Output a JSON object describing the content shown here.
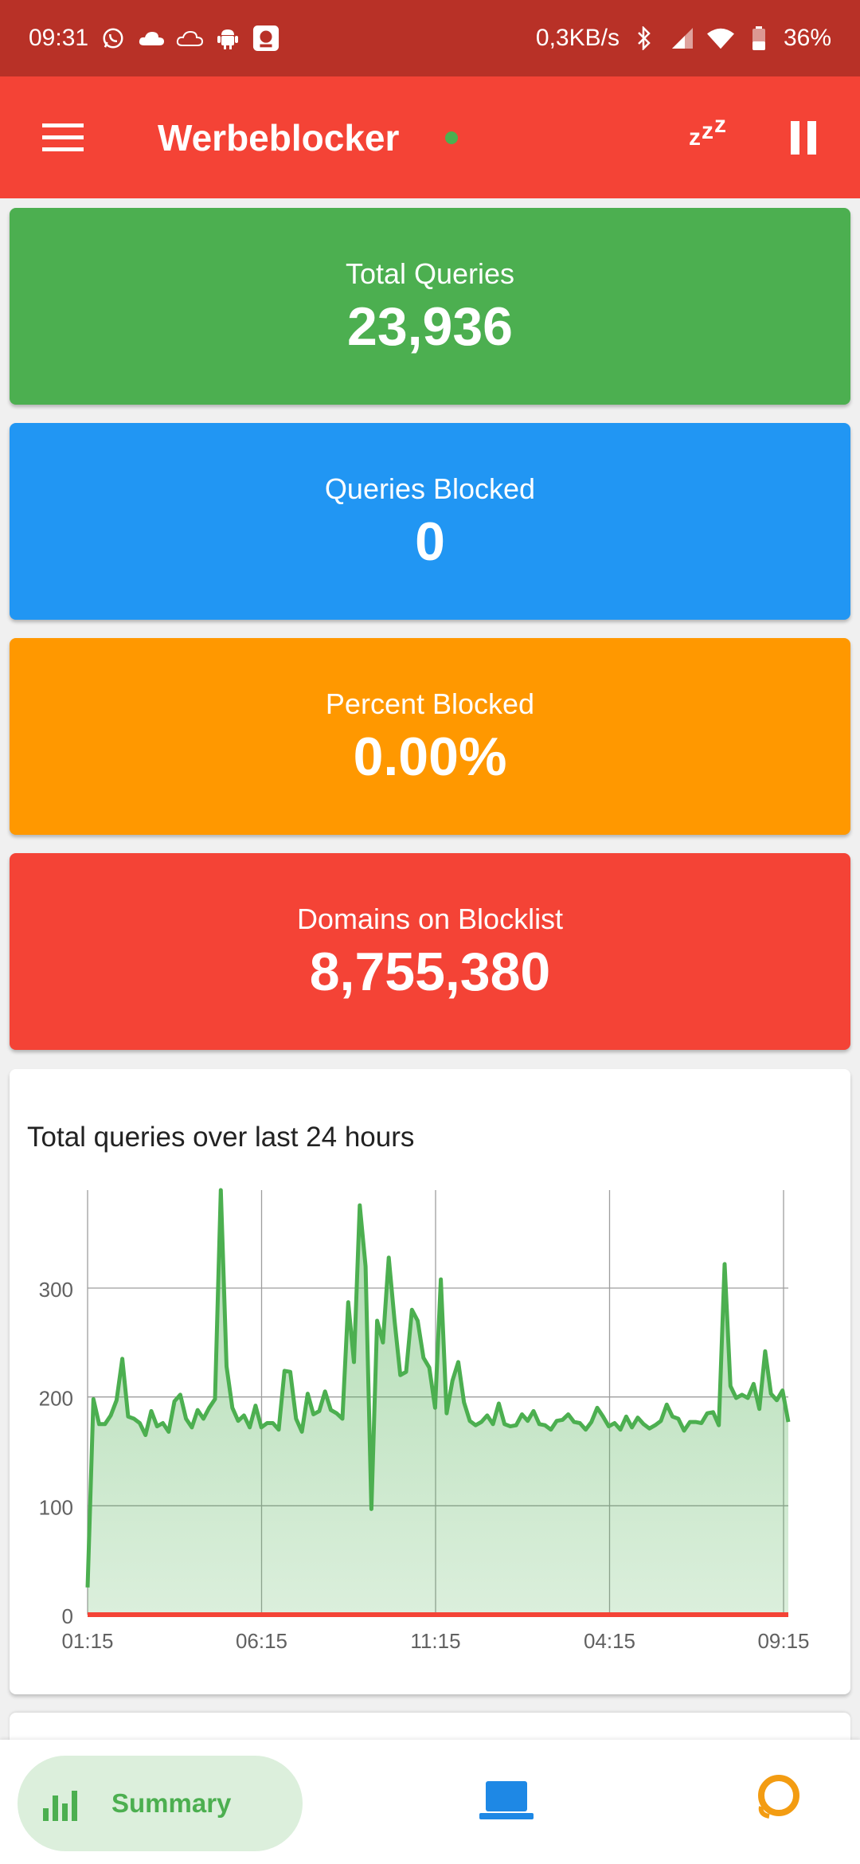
{
  "status_bar": {
    "time": "09:31",
    "net_speed": "0,3KB/s",
    "battery": "36%",
    "icons": [
      "whatsapp-icon",
      "cloud-icon",
      "cloud-outline-icon",
      "android-icon",
      "app-notification-icon",
      "bluetooth-icon",
      "signal-icon",
      "wifi-icon",
      "battery-icon"
    ]
  },
  "app_bar": {
    "title": "Werbeblocker",
    "status_dot_color": "#4caf50",
    "sleep_label": "zzz"
  },
  "stats": [
    {
      "label": "Total Queries",
      "value": "23,936",
      "color": "#4caf50"
    },
    {
      "label": "Queries Blocked",
      "value": "0",
      "color": "#2196f3"
    },
    {
      "label": "Percent Blocked",
      "value": "0.00%",
      "color": "#ff9800"
    },
    {
      "label": "Domains on Blocklist",
      "value": "8,755,380",
      "color": "#f44336"
    }
  ],
  "chart_data": {
    "type": "area",
    "title": "Total queries over last 24 hours",
    "xlabel": "",
    "ylabel": "",
    "x_tick_labels": [
      "01:15",
      "06:15",
      "11:15",
      "04:15",
      "09:15"
    ],
    "y_tick_labels": [
      "0",
      "100",
      "200",
      "300"
    ],
    "ylim": [
      0,
      390
    ],
    "grid": true,
    "series": [
      {
        "name": "",
        "color": "#4caf50",
        "values": [
          25,
          198,
          175,
          175,
          183,
          197,
          235,
          182,
          180,
          176,
          165,
          187,
          173,
          176,
          168,
          196,
          202,
          180,
          172,
          188,
          180,
          190,
          198,
          390,
          228,
          190,
          178,
          183,
          172,
          192,
          172,
          176,
          176,
          170,
          224,
          223,
          180,
          168,
          203,
          184,
          187,
          205,
          188,
          185,
          180,
          287,
          232,
          376,
          320,
          97,
          270,
          250,
          328,
          270,
          220,
          223,
          280,
          270,
          236,
          227,
          190,
          308,
          185,
          215,
          232,
          195,
          178,
          174,
          177,
          183,
          175,
          194,
          175,
          173,
          174,
          184,
          178,
          187,
          175,
          174,
          170,
          178,
          179,
          184,
          177,
          176,
          170,
          177,
          190,
          182,
          173,
          176,
          170,
          182,
          172,
          181,
          175,
          171,
          174,
          178,
          193,
          182,
          180,
          169,
          177,
          177,
          176,
          185,
          186,
          174,
          322,
          210,
          199,
          202,
          199,
          212,
          189,
          242,
          203,
          197,
          206,
          177
        ]
      },
      {
        "name": "",
        "color": "#f44336",
        "values": [
          0,
          0,
          0,
          0,
          0,
          0,
          0,
          0,
          0,
          0,
          0,
          0,
          0,
          0,
          0,
          0,
          0,
          0,
          0,
          0,
          0,
          0,
          0,
          0,
          0,
          0,
          0,
          0,
          0,
          0,
          0,
          0,
          0,
          0,
          0,
          0,
          0,
          0,
          0,
          0,
          0,
          0,
          0,
          0,
          0,
          0,
          0,
          0,
          0,
          0,
          0,
          0,
          0,
          0,
          0,
          0,
          0,
          0,
          0,
          0,
          0,
          0,
          0,
          0,
          0,
          0,
          0,
          0,
          0,
          0,
          0,
          0,
          0,
          0,
          0,
          0,
          0,
          0,
          0,
          0,
          0,
          0,
          0,
          0,
          0,
          0,
          0,
          0,
          0,
          0,
          0,
          0,
          0,
          0,
          0,
          0,
          0,
          0,
          0,
          0,
          0,
          0,
          0,
          0,
          0,
          0,
          0,
          0,
          0,
          0,
          0,
          0,
          0,
          0,
          0,
          0,
          0,
          0,
          0,
          0,
          0,
          0
        ]
      }
    ]
  },
  "bottom_nav": {
    "summary_label": "Summary",
    "active_color": "#4caf50",
    "devices_color": "#1e88e5",
    "settings_color": "#f39c12"
  }
}
